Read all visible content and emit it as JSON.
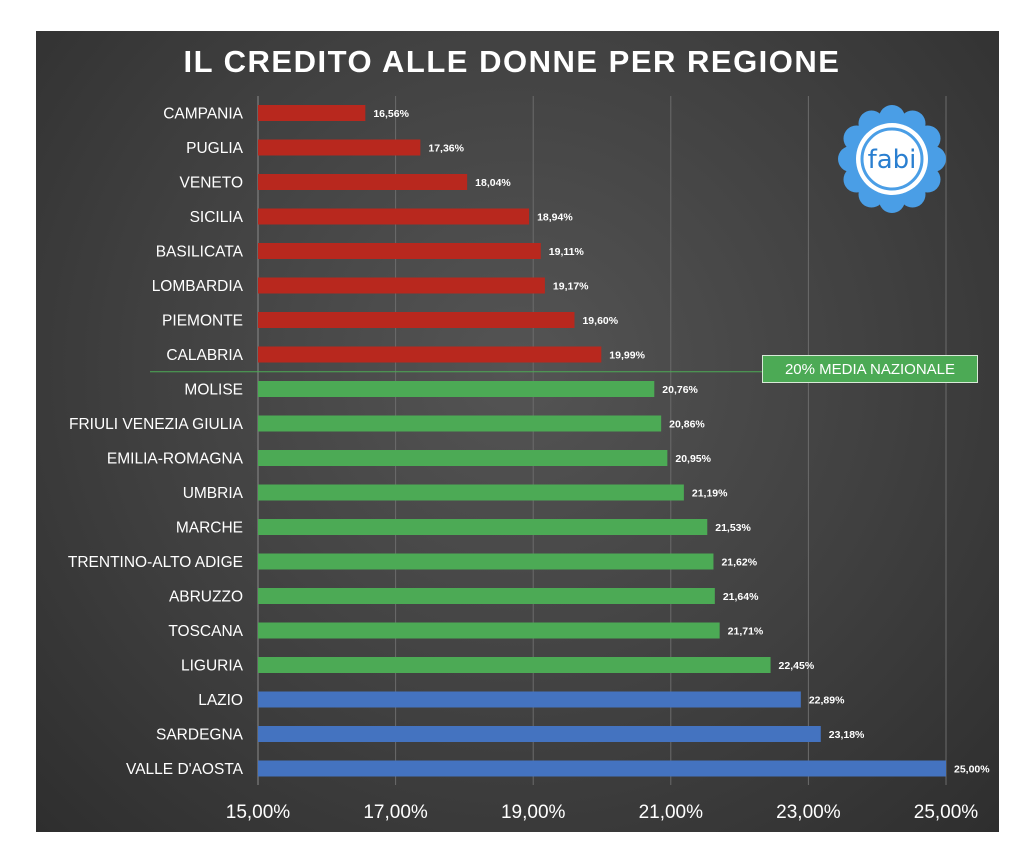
{
  "chart_data": {
    "type": "bar",
    "orientation": "horizontal",
    "title": "IL CREDITO ALLE DONNE PER REGIONE",
    "categories": [
      "CAMPANIA",
      "PUGLIA",
      "VENETO",
      "SICILIA",
      "BASILICATA",
      "LOMBARDIA",
      "PIEMONTE",
      "CALABRIA",
      "MOLISE",
      "FRIULI VENEZIA GIULIA",
      "EMILIA-ROMAGNA",
      "UMBRIA",
      "MARCHE",
      "TRENTINO-ALTO ADIGE",
      "ABRUZZO",
      "TOSCANA",
      "LIGURIA",
      "LAZIO",
      "SARDEGNA",
      "VALLE D'AOSTA"
    ],
    "values": [
      16.56,
      17.36,
      18.04,
      18.94,
      19.11,
      19.17,
      19.6,
      19.99,
      20.76,
      20.86,
      20.95,
      21.19,
      21.53,
      21.62,
      21.64,
      21.71,
      22.45,
      22.89,
      23.18,
      25.0
    ],
    "value_labels": [
      "16,56%",
      "17,36%",
      "18,04%",
      "18,94%",
      "19,11%",
      "19,17%",
      "19,60%",
      "19,99%",
      "20,76%",
      "20,86%",
      "20,95%",
      "21,19%",
      "21,53%",
      "21,62%",
      "21,64%",
      "21,71%",
      "22,45%",
      "22,89%",
      "23,18%",
      "25,00%"
    ],
    "bar_colors": [
      "#b8281e",
      "#b8281e",
      "#b8281e",
      "#b8281e",
      "#b8281e",
      "#b8281e",
      "#b8281e",
      "#b8281e",
      "#4caa55",
      "#4caa55",
      "#4caa55",
      "#4caa55",
      "#4caa55",
      "#4caa55",
      "#4caa55",
      "#4caa55",
      "#4caa55",
      "#4473c0",
      "#4473c0",
      "#4473c0"
    ],
    "xlim": [
      15,
      25
    ],
    "xticks": [
      15,
      17,
      19,
      21,
      23,
      25
    ],
    "xtick_labels": [
      "15,00%",
      "17,00%",
      "19,00%",
      "21,00%",
      "23,00%",
      "25,00%"
    ],
    "grid": true,
    "reference_line": {
      "value": 20,
      "label": "20% MEDIA NAZIONALE",
      "color": "#4caa55"
    }
  },
  "logo": {
    "text": "fabi",
    "petal_color": "#4a9ee6",
    "text_color": "#2a7fd0"
  }
}
